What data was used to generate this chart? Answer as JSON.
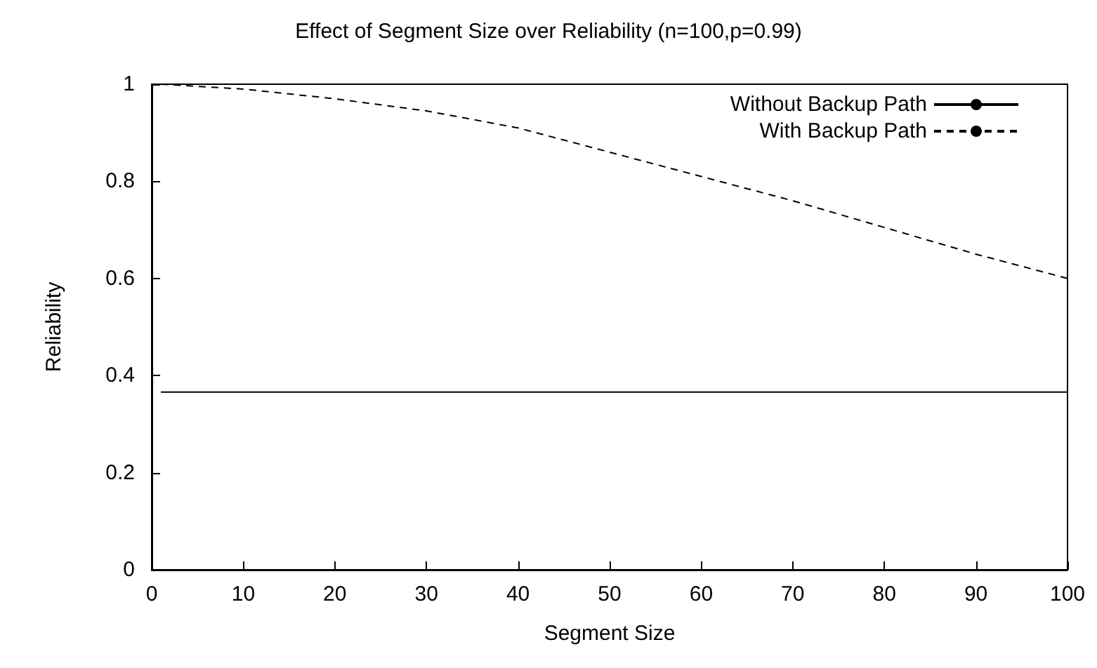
{
  "chart_data": {
    "type": "line",
    "title": "Effect of Segment Size over Reliability (n=100,p=0.99)",
    "xlabel": "Segment Size",
    "ylabel": "Reliability",
    "xlim": [
      0,
      100
    ],
    "xticks": [
      0,
      10,
      20,
      30,
      40,
      50,
      60,
      70,
      80,
      90,
      100
    ],
    "ylim": [
      0,
      1
    ],
    "yticks": [
      0,
      0.2,
      0.4,
      0.6,
      0.8,
      1
    ],
    "grid": false,
    "legend": "top right",
    "marker": "none",
    "series": [
      {
        "name": "Without Backup Path",
        "color": "#000000",
        "line_style": "solid",
        "x": [
          1,
          100
        ],
        "values": [
          0.366,
          0.366
        ]
      },
      {
        "name": "With Backup Path",
        "color": "#000000",
        "line_style": "dashed",
        "x": [
          1,
          10,
          20,
          30,
          40,
          50,
          60,
          70,
          80,
          90,
          100
        ],
        "values": [
          1,
          0.99,
          0.97,
          0.945,
          0.91,
          0.86,
          0.81,
          0.76,
          0.705,
          0.65,
          0.6
        ]
      }
    ]
  }
}
